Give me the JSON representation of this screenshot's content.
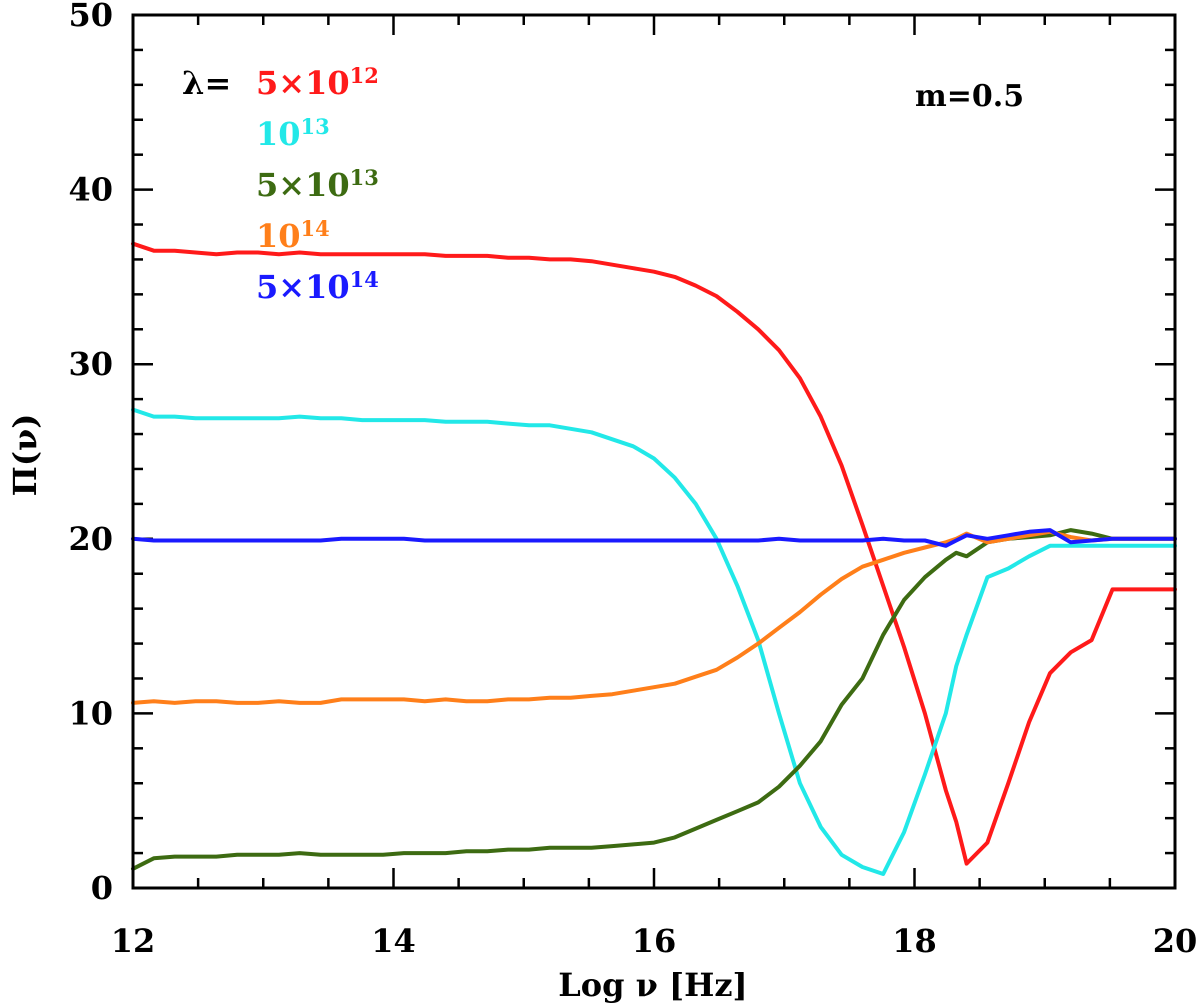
{
  "chart_data": {
    "type": "line",
    "xlabel": "Log ν [Hz]",
    "ylabel": "Π(ν)",
    "xlim": [
      12,
      20
    ],
    "ylim": [
      0,
      50
    ],
    "x_ticks": [
      12,
      14,
      16,
      18,
      20
    ],
    "y_ticks": [
      0,
      10,
      20,
      30,
      40,
      50
    ],
    "x_minor_step": 0.5,
    "y_minor_step": 2,
    "annotation": "m=0.5",
    "legend": {
      "prefix": "λ=",
      "placement": "top-left",
      "entries": [
        {
          "base": "5×10",
          "exp": "12",
          "color": "#ff1a1a"
        },
        {
          "base": "10",
          "exp": "13",
          "color": "#22e8e8"
        },
        {
          "base": "5×10",
          "exp": "13",
          "color": "#3d6b12"
        },
        {
          "base": "10",
          "exp": "14",
          "color": "#ff7f1a"
        },
        {
          "base": "5×10",
          "exp": "14",
          "color": "#1a1aff"
        }
      ]
    },
    "x": [
      12,
      12.16,
      12.32,
      12.48,
      12.64,
      12.8,
      12.96,
      13.12,
      13.28,
      13.44,
      13.6,
      13.76,
      13.92,
      14.08,
      14.24,
      14.4,
      14.56,
      14.72,
      14.88,
      15.04,
      15.2,
      15.36,
      15.52,
      15.68,
      15.84,
      16,
      16.16,
      16.32,
      16.48,
      16.64,
      16.8,
      16.96,
      17.12,
      17.28,
      17.44,
      17.6,
      17.76,
      17.92,
      18.08,
      18.24,
      18.32,
      18.4,
      18.56,
      18.72,
      18.88,
      19.04,
      19.2,
      19.36,
      19.52,
      19.68,
      19.84,
      20
    ],
    "series": [
      {
        "color": "#ff1a1a",
        "values": [
          36.9,
          36.5,
          36.5,
          36.4,
          36.3,
          36.4,
          36.4,
          36.3,
          36.4,
          36.3,
          36.3,
          36.3,
          36.3,
          36.3,
          36.3,
          36.2,
          36.2,
          36.2,
          36.1,
          36.1,
          36.0,
          36.0,
          35.9,
          35.7,
          35.5,
          35.3,
          35.0,
          34.5,
          33.9,
          33.0,
          32.0,
          30.8,
          29.2,
          27.0,
          24.2,
          20.8,
          17.3,
          13.8,
          10.0,
          5.6,
          3.8,
          1.4,
          2.6,
          6.0,
          9.5,
          12.3,
          13.5,
          14.2,
          17.1,
          17.1,
          17.1,
          17.1
        ]
      },
      {
        "color": "#22e8e8",
        "values": [
          27.4,
          27.0,
          27.0,
          26.9,
          26.9,
          26.9,
          26.9,
          26.9,
          27.0,
          26.9,
          26.9,
          26.8,
          26.8,
          26.8,
          26.8,
          26.7,
          26.7,
          26.7,
          26.6,
          26.5,
          26.5,
          26.3,
          26.1,
          25.7,
          25.3,
          24.6,
          23.5,
          22.0,
          20.0,
          17.3,
          14.2,
          10.0,
          6.0,
          3.5,
          1.9,
          1.2,
          0.8,
          3.2,
          6.5,
          10.0,
          12.7,
          14.5,
          17.8,
          18.3,
          19.0,
          19.6,
          19.6,
          19.6,
          19.6,
          19.6,
          19.6,
          19.6
        ]
      },
      {
        "color": "#3d6b12",
        "values": [
          1.1,
          1.7,
          1.8,
          1.8,
          1.8,
          1.9,
          1.9,
          1.9,
          2.0,
          1.9,
          1.9,
          1.9,
          1.9,
          2.0,
          2.0,
          2.0,
          2.1,
          2.1,
          2.2,
          2.2,
          2.3,
          2.3,
          2.3,
          2.4,
          2.5,
          2.6,
          2.9,
          3.4,
          3.9,
          4.4,
          4.9,
          5.8,
          7.0,
          8.4,
          10.5,
          12.0,
          14.5,
          16.5,
          17.8,
          18.8,
          19.2,
          19.0,
          19.8,
          20.0,
          20.1,
          20.2,
          20.5,
          20.3,
          20.0,
          20.0,
          20.0,
          20.0
        ]
      },
      {
        "color": "#ff7f1a",
        "values": [
          10.6,
          10.7,
          10.6,
          10.7,
          10.7,
          10.6,
          10.6,
          10.7,
          10.6,
          10.6,
          10.8,
          10.8,
          10.8,
          10.8,
          10.7,
          10.8,
          10.7,
          10.7,
          10.8,
          10.8,
          10.9,
          10.9,
          11.0,
          11.1,
          11.3,
          11.5,
          11.7,
          12.1,
          12.5,
          13.2,
          14.0,
          14.9,
          15.8,
          16.8,
          17.7,
          18.4,
          18.8,
          19.2,
          19.5,
          19.8,
          20.0,
          20.3,
          19.8,
          20.0,
          20.2,
          20.4,
          20.1,
          19.9,
          20.0,
          20.0,
          20.0,
          20.0
        ]
      },
      {
        "color": "#1a1aff",
        "values": [
          20.0,
          19.9,
          19.9,
          19.9,
          19.9,
          19.9,
          19.9,
          19.9,
          19.9,
          19.9,
          20.0,
          20.0,
          20.0,
          20.0,
          19.9,
          19.9,
          19.9,
          19.9,
          19.9,
          19.9,
          19.9,
          19.9,
          19.9,
          19.9,
          19.9,
          19.9,
          19.9,
          19.9,
          19.9,
          19.9,
          19.9,
          20.0,
          19.9,
          19.9,
          19.9,
          19.9,
          20.0,
          19.9,
          19.9,
          19.6,
          19.9,
          20.2,
          20.0,
          20.2,
          20.4,
          20.5,
          19.8,
          19.9,
          20.0,
          20.0,
          20.0,
          20.0
        ]
      }
    ]
  }
}
